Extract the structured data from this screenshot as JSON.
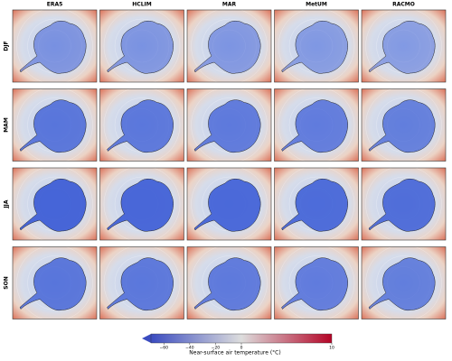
{
  "columns": [
    "ERA5",
    "HCLIM",
    "MAR",
    "MetUM",
    "RACMO"
  ],
  "rows": [
    "DJF",
    "MAM",
    "JJA",
    "SON"
  ],
  "colorbar": {
    "label": "Near-surface air temperature (°C)",
    "lim": [
      -70,
      10
    ],
    "center": 0,
    "colors": [
      "#3b4cc0",
      "#dddddd",
      "#b40426"
    ],
    "ticks": [
      {
        "value": -60,
        "label": "−60"
      },
      {
        "value": -40,
        "label": "−40"
      },
      {
        "value": -20,
        "label": "−20"
      },
      0,
      10
    ]
  }
}
